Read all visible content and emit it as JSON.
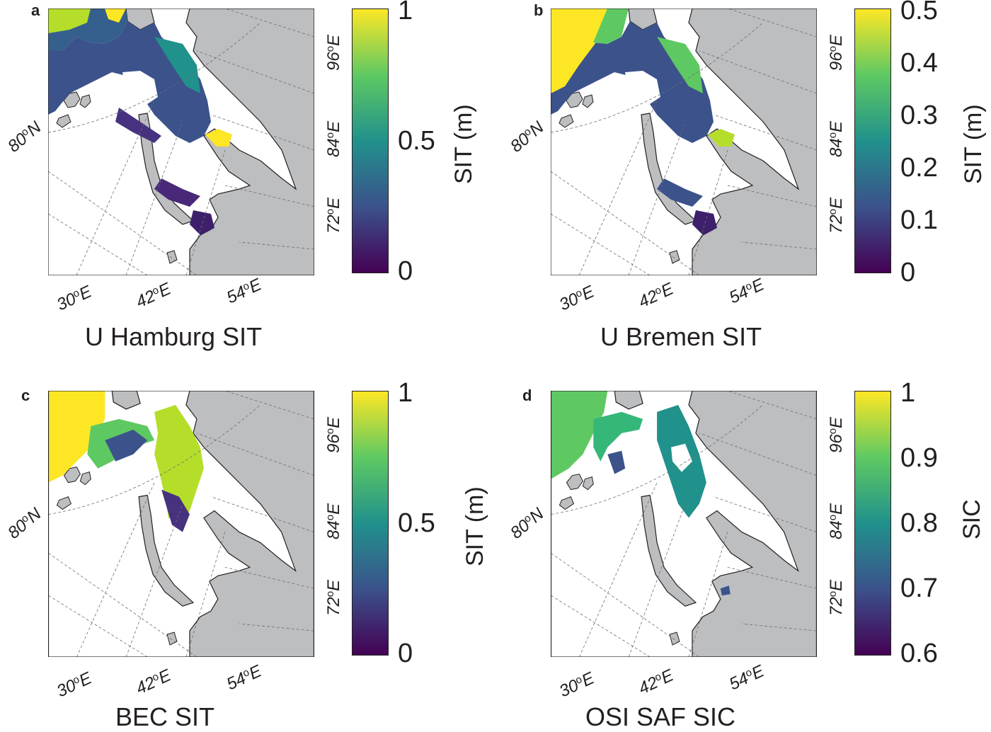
{
  "panels": [
    {
      "id": "a",
      "letter": "a",
      "title": "U Hamburg SIT",
      "colorbar": {
        "label": "SIT (m)",
        "ticks": [
          "1",
          "0.5",
          "0"
        ],
        "type": "viridis"
      },
      "lat_label": "80",
      "lat_dir": "N",
      "lon_bottom": [
        "30",
        "42",
        "54"
      ],
      "lon_right": [
        "96",
        "84",
        "72"
      ],
      "deg": "o",
      "east": "E"
    },
    {
      "id": "b",
      "letter": "b",
      "title": "U Bremen SIT",
      "colorbar": {
        "label": "SIT (m)",
        "ticks": [
          "0.5",
          "0.4",
          "0.3",
          "0.2",
          "0.1",
          "0"
        ],
        "type": "viridis"
      },
      "lat_label": "80",
      "lat_dir": "N",
      "lon_bottom": [
        "30",
        "42",
        "54"
      ],
      "lon_right": [
        "96",
        "84",
        "72"
      ],
      "deg": "o",
      "east": "E"
    },
    {
      "id": "c",
      "letter": "c",
      "title": "BEC SIT",
      "colorbar": {
        "label": "SIT (m)",
        "ticks": [
          "1",
          "0.5",
          "0"
        ],
        "type": "viridis"
      },
      "lat_label": "80",
      "lat_dir": "N",
      "lon_bottom": [
        "30",
        "42",
        "54"
      ],
      "lon_right": [
        "96",
        "84",
        "72"
      ],
      "deg": "o",
      "east": "E"
    },
    {
      "id": "d",
      "letter": "d",
      "title": "OSI SAF SIC",
      "colorbar": {
        "label": "SIC",
        "ticks": [
          "1",
          "0.9",
          "0.8",
          "0.7",
          "0.6"
        ],
        "type": "viridis"
      },
      "lat_label": "80",
      "lat_dir": "N",
      "lon_bottom": [
        "30",
        "42",
        "54"
      ],
      "lon_right": [
        "96",
        "84",
        "72"
      ],
      "deg": "o",
      "east": "E"
    }
  ],
  "colors": {
    "land": "#bcbec0",
    "ocean": "#ffffff",
    "viridis": [
      "#440154",
      "#3b528b",
      "#21918c",
      "#5ec962",
      "#fde725"
    ]
  }
}
